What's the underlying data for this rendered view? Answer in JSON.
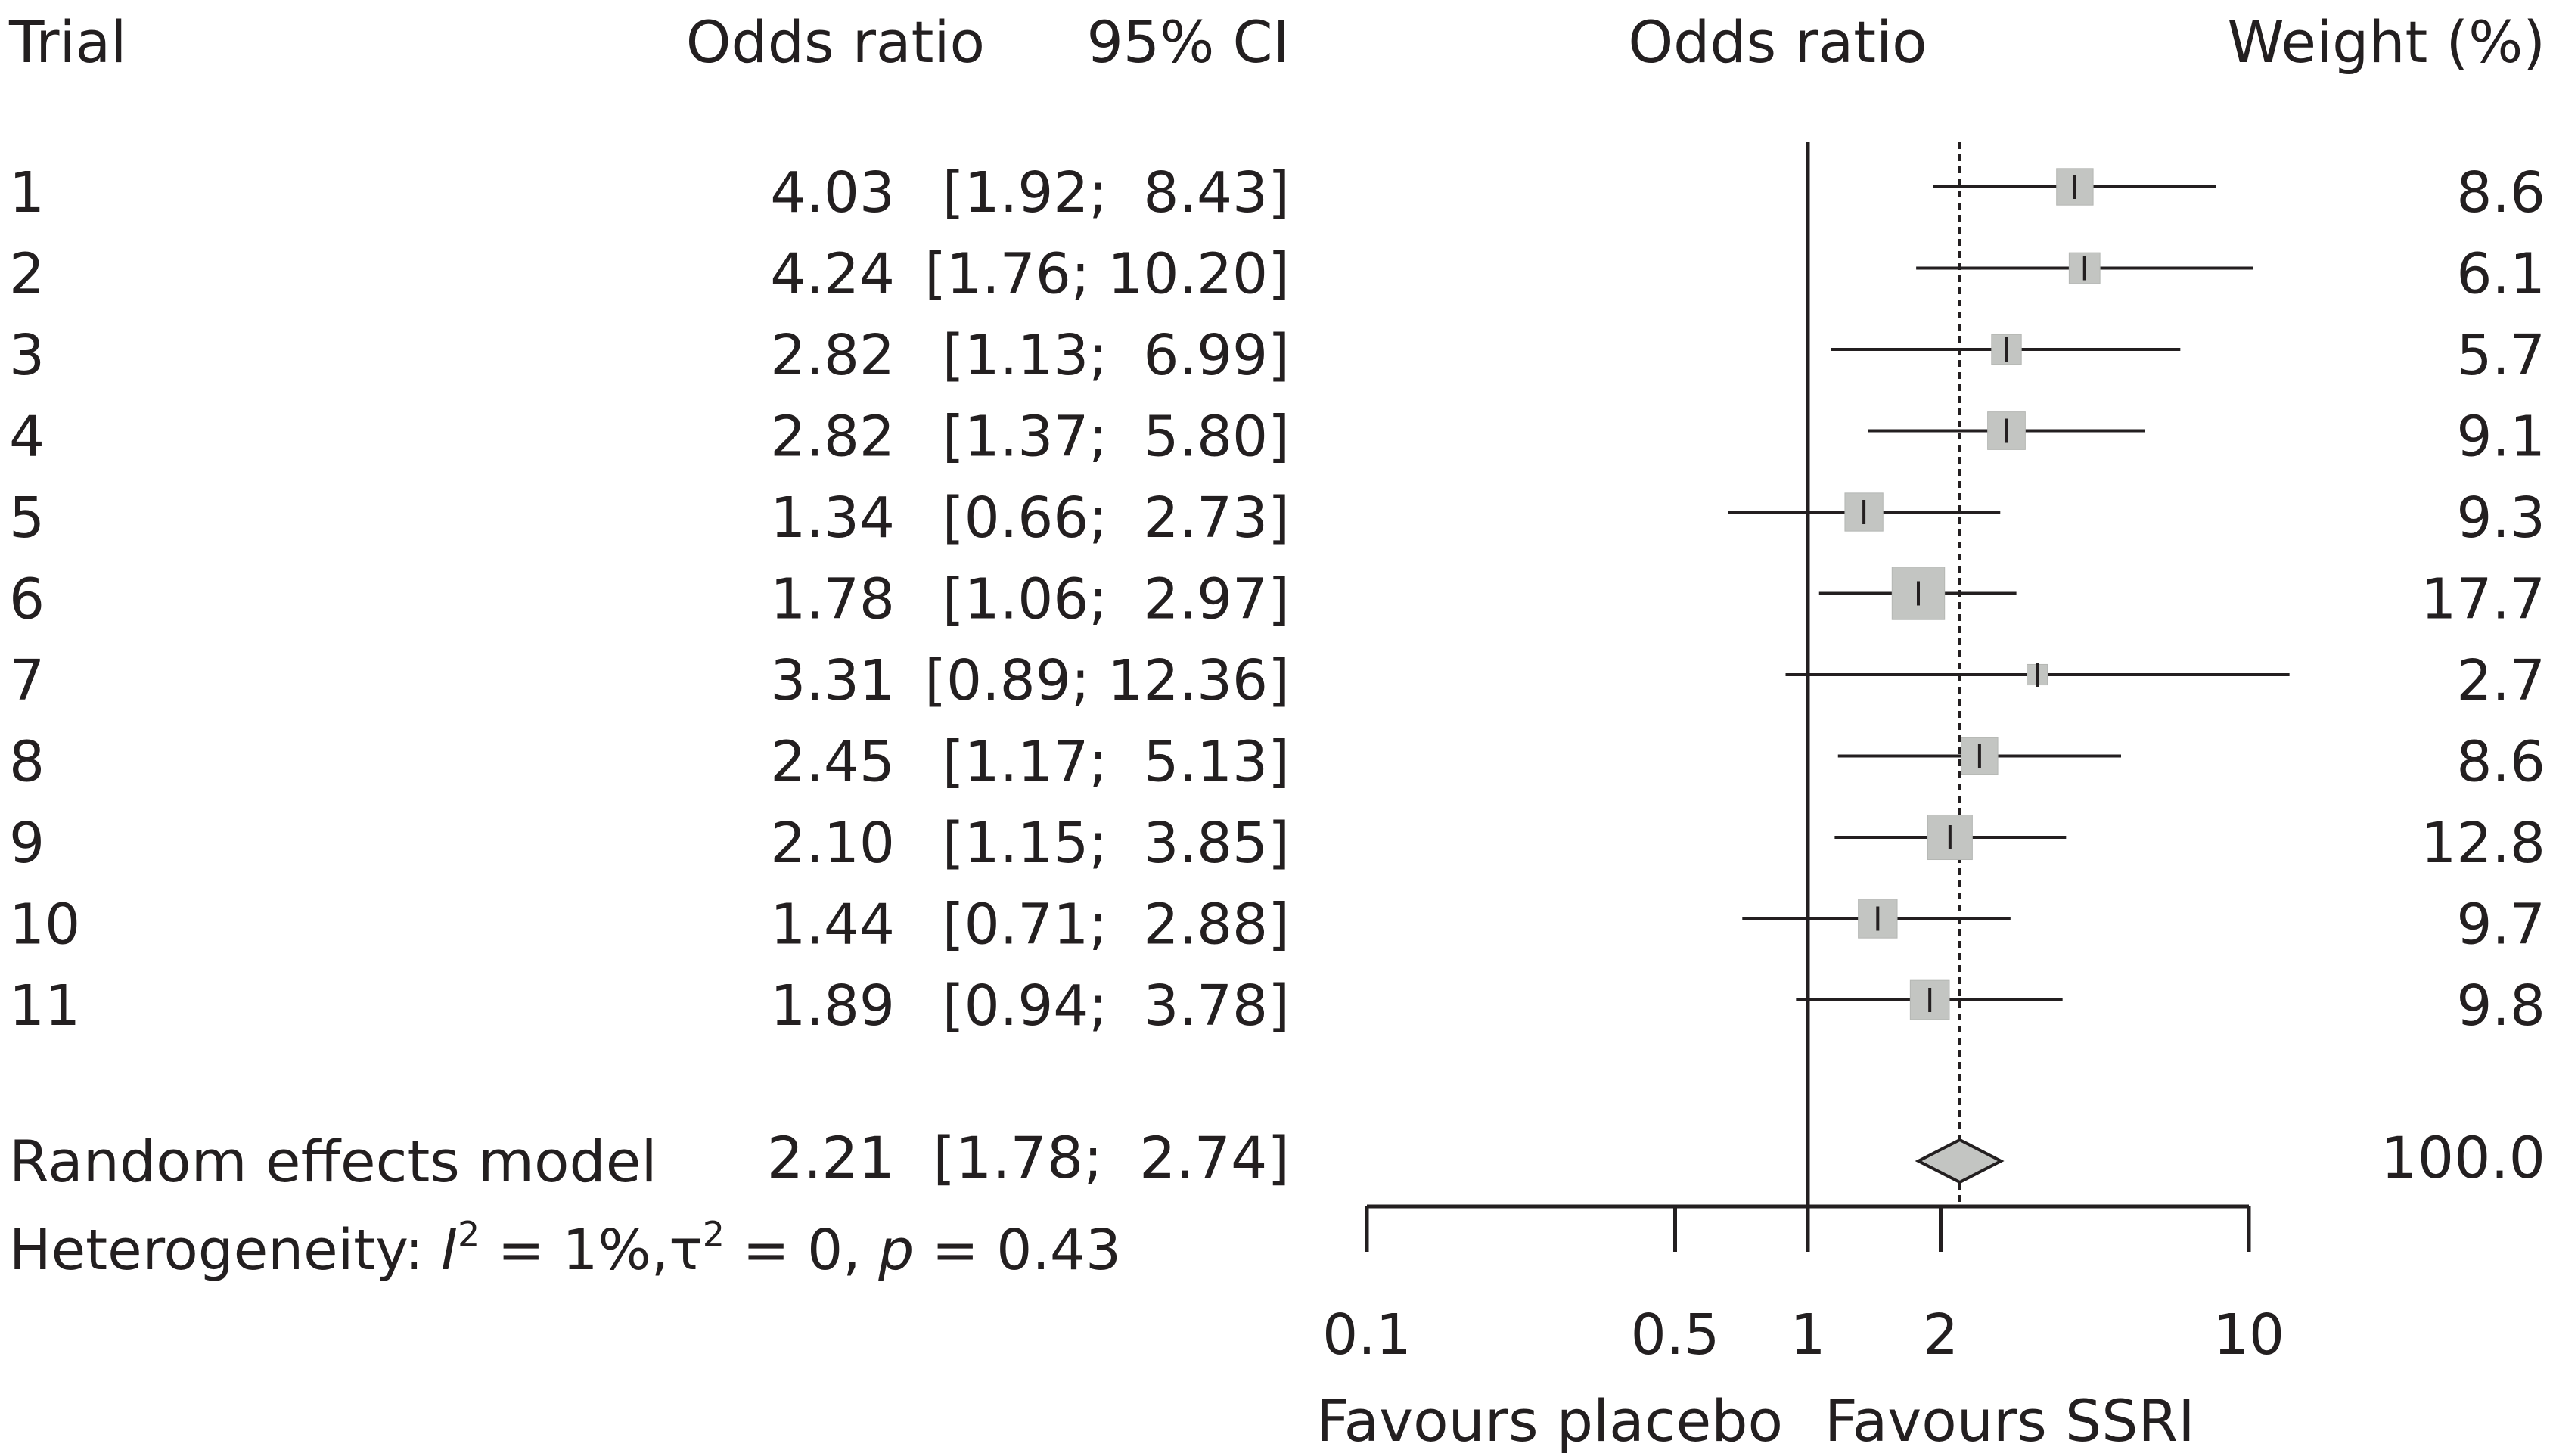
{
  "chart_data": {
    "type": "forest",
    "columns": {
      "trial": "Trial",
      "odds_ratio": "Odds ratio",
      "ci": "95% CI",
      "plot": "Odds ratio",
      "weight": "Weight (%)"
    },
    "studies": [
      {
        "trial": "1",
        "or": 4.03,
        "or_text": "4.03",
        "lower": 1.92,
        "upper": 8.43,
        "ci_text": "[1.92;  8.43]",
        "weight": 8.6,
        "weight_text": "8.6"
      },
      {
        "trial": "2",
        "or": 4.24,
        "or_text": "4.24",
        "lower": 1.76,
        "upper": 10.2,
        "ci_text": "[1.76; 10.20]",
        "weight": 6.1,
        "weight_text": "6.1"
      },
      {
        "trial": "3",
        "or": 2.82,
        "or_text": "2.82",
        "lower": 1.13,
        "upper": 6.99,
        "ci_text": "[1.13;  6.99]",
        "weight": 5.7,
        "weight_text": "5.7"
      },
      {
        "trial": "4",
        "or": 2.82,
        "or_text": "2.82",
        "lower": 1.37,
        "upper": 5.8,
        "ci_text": "[1.37;  5.80]",
        "weight": 9.1,
        "weight_text": "9.1"
      },
      {
        "trial": "5",
        "or": 1.34,
        "or_text": "1.34",
        "lower": 0.66,
        "upper": 2.73,
        "ci_text": "[0.66;  2.73]",
        "weight": 9.3,
        "weight_text": "9.3"
      },
      {
        "trial": "6",
        "or": 1.78,
        "or_text": "1.78",
        "lower": 1.06,
        "upper": 2.97,
        "ci_text": "[1.06;  2.97]",
        "weight": 17.7,
        "weight_text": "17.7"
      },
      {
        "trial": "7",
        "or": 3.31,
        "or_text": "3.31",
        "lower": 0.89,
        "upper": 12.36,
        "ci_text": "[0.89; 12.36]",
        "weight": 2.7,
        "weight_text": "2.7"
      },
      {
        "trial": "8",
        "or": 2.45,
        "or_text": "2.45",
        "lower": 1.17,
        "upper": 5.13,
        "ci_text": "[1.17;  5.13]",
        "weight": 8.6,
        "weight_text": "8.6"
      },
      {
        "trial": "9",
        "or": 2.1,
        "or_text": "2.10",
        "lower": 1.15,
        "upper": 3.85,
        "ci_text": "[1.15;  3.85]",
        "weight": 12.8,
        "weight_text": "12.8"
      },
      {
        "trial": "10",
        "or": 1.44,
        "or_text": "1.44",
        "lower": 0.71,
        "upper": 2.88,
        "ci_text": "[0.71;  2.88]",
        "weight": 9.7,
        "weight_text": "9.7"
      },
      {
        "trial": "11",
        "or": 1.89,
        "or_text": "1.89",
        "lower": 0.94,
        "upper": 3.78,
        "ci_text": "[0.94;  3.78]",
        "weight": 9.8,
        "weight_text": "9.8"
      }
    ],
    "summary": {
      "label": "Random effects model",
      "or": 2.21,
      "or_text": "2.21",
      "lower": 1.78,
      "upper": 2.74,
      "ci_text": "[1.78;  2.74]",
      "weight_text": "100.0"
    },
    "heterogeneity": {
      "prefix": "Heterogeneity: ",
      "i_symbol": "I",
      "squared": "2",
      "i_value": " = 1%,",
      "tau_symbol": "τ",
      "tau_value": " = 0, ",
      "p_symbol": "p",
      "p_value": " = 0.43"
    },
    "axis": {
      "scale": "log",
      "xlim": [
        0.1,
        10
      ],
      "ticks": [
        0.1,
        0.5,
        1,
        2,
        10
      ],
      "tick_labels": [
        "0.1",
        "0.5",
        "1",
        "2",
        "10"
      ],
      "null_value": 1,
      "left_label": "Favours placebo",
      "right_label": "Favours SSRI"
    },
    "colors": {
      "text": "#231f20",
      "box": "#c3c5c2",
      "box_stroke": "#b5b7b4",
      "line": "#231f20"
    }
  }
}
